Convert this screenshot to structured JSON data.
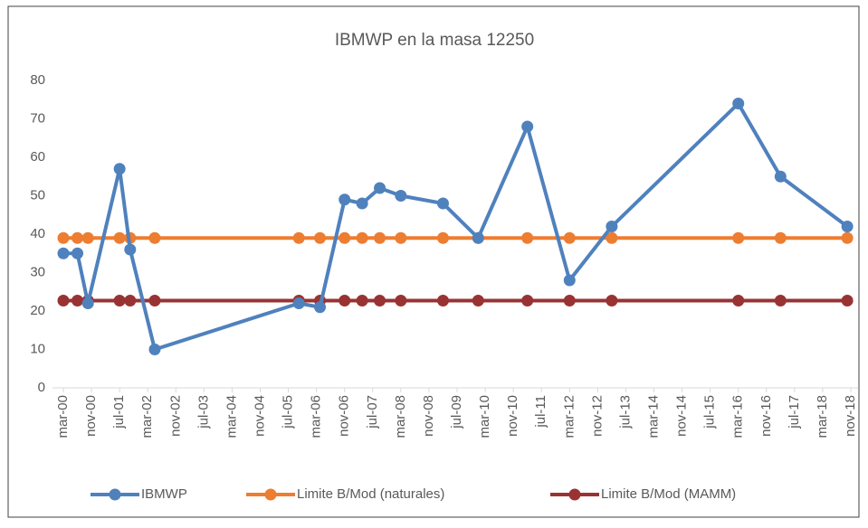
{
  "chart_data": {
    "type": "line",
    "title": "IBMWP en la masa 12250",
    "x": [
      "2000-03",
      "2000-07",
      "2000-10",
      "2001-07",
      "2001-10",
      "2002-05",
      "2005-10",
      "2006-04",
      "2006-11",
      "2007-04",
      "2007-09",
      "2008-03",
      "2009-03",
      "2010-01",
      "2011-03",
      "2012-03",
      "2013-03",
      "2016-03",
      "2017-03",
      "2018-10"
    ],
    "series": [
      {
        "name": "IBMWP",
        "color": "#4f81bd",
        "values": [
          35,
          35,
          22,
          57,
          36,
          10,
          22,
          21,
          49,
          48,
          52,
          50,
          48,
          39,
          68,
          28,
          42,
          74,
          55,
          42
        ]
      },
      {
        "name": "Limite B/Mod (naturales)",
        "color": "#ed7d31",
        "values": [
          39,
          39,
          39,
          39,
          39,
          39,
          39,
          39,
          39,
          39,
          39,
          39,
          39,
          39,
          39,
          39,
          39,
          39,
          39,
          39
        ]
      },
      {
        "name": "Limite B/Mod (MAMM)",
        "color": "#993333",
        "values": [
          22.7,
          22.7,
          22.7,
          22.7,
          22.7,
          22.7,
          22.7,
          22.7,
          22.7,
          22.7,
          22.7,
          22.7,
          22.7,
          22.7,
          22.7,
          22.7,
          22.7,
          22.7,
          22.7,
          22.7
        ]
      }
    ],
    "xlim": [
      "2000-03",
      "2018-11"
    ],
    "xticks": [
      {
        "value": "2000-03",
        "label": "mar-00"
      },
      {
        "value": "2000-11",
        "label": "nov-00"
      },
      {
        "value": "2001-07",
        "label": "jul-01"
      },
      {
        "value": "2002-03",
        "label": "mar-02"
      },
      {
        "value": "2002-11",
        "label": "nov-02"
      },
      {
        "value": "2003-07",
        "label": "jul-03"
      },
      {
        "value": "2004-03",
        "label": "mar-04"
      },
      {
        "value": "2004-11",
        "label": "nov-04"
      },
      {
        "value": "2005-07",
        "label": "jul-05"
      },
      {
        "value": "2006-03",
        "label": "mar-06"
      },
      {
        "value": "2006-11",
        "label": "nov-06"
      },
      {
        "value": "2007-07",
        "label": "jul-07"
      },
      {
        "value": "2008-03",
        "label": "mar-08"
      },
      {
        "value": "2008-11",
        "label": "nov-08"
      },
      {
        "value": "2009-07",
        "label": "jul-09"
      },
      {
        "value": "2010-03",
        "label": "mar-10"
      },
      {
        "value": "2010-11",
        "label": "nov-10"
      },
      {
        "value": "2011-07",
        "label": "jul-11"
      },
      {
        "value": "2012-03",
        "label": "mar-12"
      },
      {
        "value": "2012-11",
        "label": "nov-12"
      },
      {
        "value": "2013-07",
        "label": "jul-13"
      },
      {
        "value": "2014-03",
        "label": "mar-14"
      },
      {
        "value": "2014-11",
        "label": "nov-14"
      },
      {
        "value": "2015-07",
        "label": "jul-15"
      },
      {
        "value": "2016-03",
        "label": "mar-16"
      },
      {
        "value": "2016-11",
        "label": "nov-16"
      },
      {
        "value": "2017-07",
        "label": "jul-17"
      },
      {
        "value": "2018-03",
        "label": "mar-18"
      },
      {
        "value": "2018-11",
        "label": "nov-18"
      }
    ],
    "ylim": [
      0,
      80
    ],
    "yticks": [
      0,
      10,
      20,
      30,
      40,
      50,
      60,
      70,
      80
    ],
    "grid": false,
    "legend": "bottom"
  }
}
